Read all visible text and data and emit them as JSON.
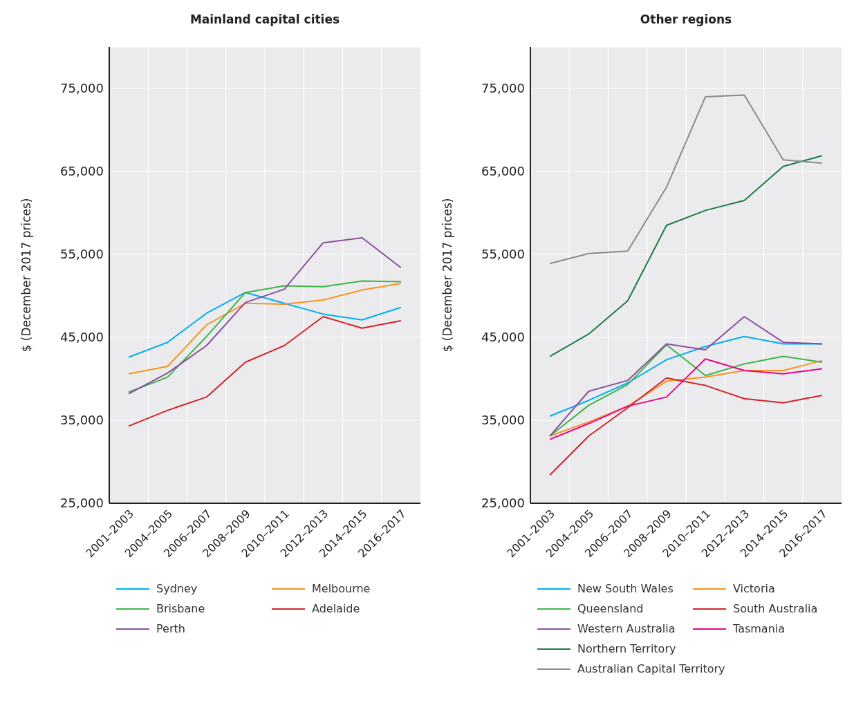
{
  "chart_data": [
    {
      "type": "line",
      "title": "Mainland capital cities",
      "ylabel": "$ (December 2017 prices)",
      "categories": [
        "2001–2003",
        "2004–2005",
        "2006–2007",
        "2008–2009",
        "2010–2011",
        "2012–2013",
        "2014–2015",
        "2016–2017"
      ],
      "ylim": [
        25000,
        80000
      ],
      "yticks": [
        {
          "value": 25000,
          "label": "25,000"
        },
        {
          "value": 35000,
          "label": "35,000"
        },
        {
          "value": 45000,
          "label": "45,000"
        },
        {
          "value": 55000,
          "label": "55,000"
        },
        {
          "value": 65000,
          "label": "65,000"
        },
        {
          "value": 75000,
          "label": "75,000"
        }
      ],
      "grid": true,
      "legend": "bottom",
      "series": [
        {
          "name": "Sydney",
          "color": "#00aeef",
          "values": [
            42600,
            44400,
            47900,
            50400,
            49100,
            47800,
            47100,
            48600
          ]
        },
        {
          "name": "Melbourne",
          "color": "#f7941d",
          "values": [
            40600,
            41500,
            46500,
            49100,
            49000,
            49500,
            50700,
            51500
          ]
        },
        {
          "name": "Brisbane",
          "color": "#3db54a",
          "values": [
            38400,
            40200,
            45100,
            50400,
            51200,
            51100,
            51800,
            51700
          ]
        },
        {
          "name": "Adelaide",
          "color": "#d2232a",
          "values": [
            34300,
            36200,
            37800,
            42000,
            44000,
            47500,
            46100,
            47000
          ]
        },
        {
          "name": "Perth",
          "color": "#8a4f9e",
          "values": [
            38200,
            40700,
            44000,
            49200,
            50800,
            56400,
            57000,
            53400
          ]
        }
      ]
    },
    {
      "type": "line",
      "title": "Other regions",
      "ylabel": "$ (December 2017 prices)",
      "categories": [
        "2001–2003",
        "2004–2005",
        "2006–2007",
        "2008–2009",
        "2010–2011",
        "2012–2013",
        "2014–2015",
        "2016–2017"
      ],
      "ylim": [
        25000,
        80000
      ],
      "yticks": [
        {
          "value": 25000,
          "label": "25,000"
        },
        {
          "value": 35000,
          "label": "35,000"
        },
        {
          "value": 45000,
          "label": "45,000"
        },
        {
          "value": 55000,
          "label": "55,000"
        },
        {
          "value": 65000,
          "label": "65,000"
        },
        {
          "value": 75000,
          "label": "75,000"
        }
      ],
      "grid": true,
      "legend": "bottom",
      "series": [
        {
          "name": "New South Wales",
          "color": "#00aeef",
          "values": [
            35500,
            37400,
            39500,
            42300,
            43900,
            45100,
            44200,
            44200
          ]
        },
        {
          "name": "Victoria",
          "color": "#f7941d",
          "values": [
            33100,
            34800,
            36700,
            39700,
            40200,
            41000,
            41000,
            42200
          ]
        },
        {
          "name": "Queensland",
          "color": "#3db54a",
          "values": [
            33100,
            36800,
            39300,
            44100,
            40400,
            41800,
            42700,
            42000
          ]
        },
        {
          "name": "South Australia",
          "color": "#d2232a",
          "values": [
            28400,
            33100,
            36500,
            40100,
            39200,
            37600,
            37100,
            38000
          ]
        },
        {
          "name": "Western Australia",
          "color": "#8a4f9e",
          "values": [
            33100,
            38500,
            39800,
            44200,
            43500,
            47500,
            44400,
            44200
          ]
        },
        {
          "name": "Tasmania",
          "color": "#ec008c",
          "values": [
            32700,
            34600,
            36700,
            37800,
            42400,
            41000,
            40600,
            41200
          ]
        },
        {
          "name": "Northern Territory",
          "color": "#1e7b45",
          "values": [
            42700,
            45400,
            49400,
            58500,
            60300,
            61500,
            65600,
            66900
          ]
        },
        {
          "name": "Australian Capital Territory",
          "color": "#8a8a8a",
          "values": [
            53900,
            55100,
            55400,
            63100,
            74000,
            74200,
            66400,
            66000
          ]
        }
      ]
    }
  ]
}
